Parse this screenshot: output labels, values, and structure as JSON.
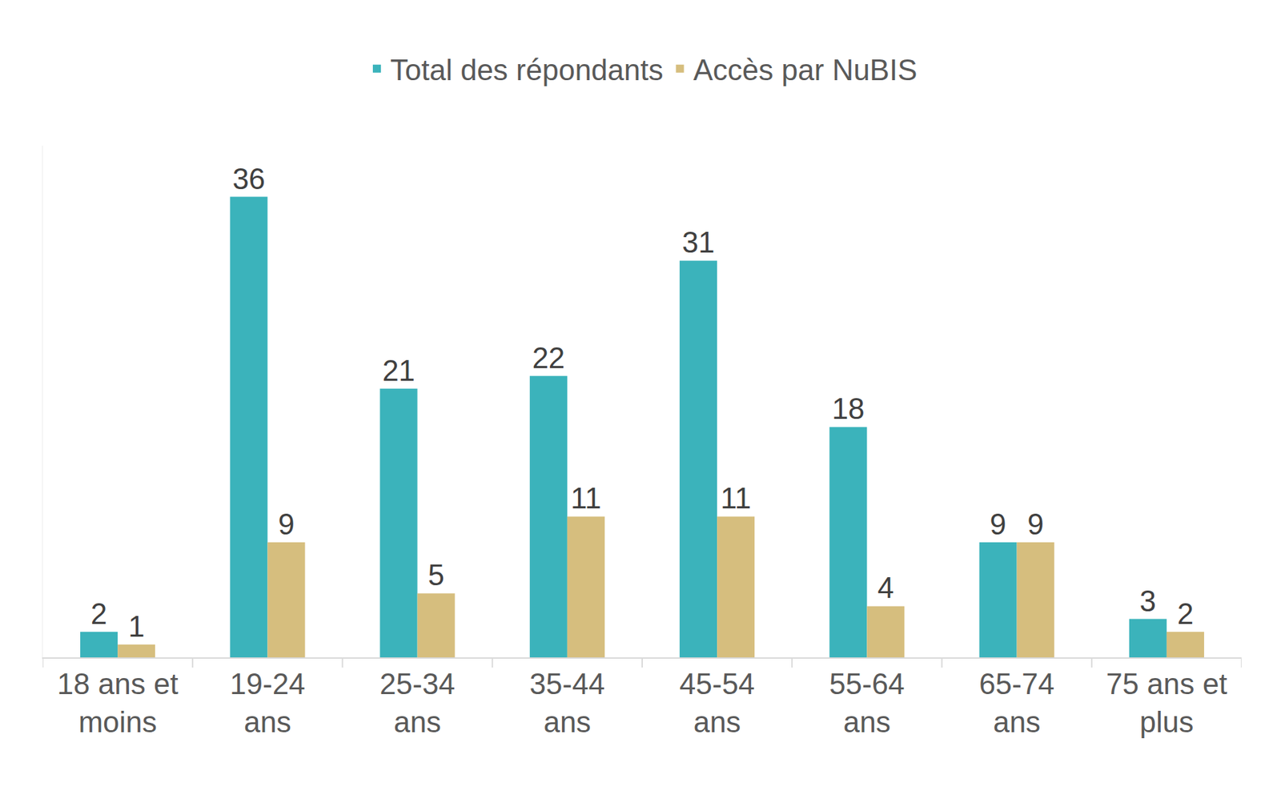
{
  "chart_data": {
    "type": "bar",
    "categories": [
      "18 ans et moins",
      "19-24 ans",
      "25-34 ans",
      "35-44 ans",
      "45-54 ans",
      "55-64 ans",
      "65-74 ans",
      "75 ans et plus"
    ],
    "series": [
      {
        "name": "Total des répondants",
        "color": "#3bb3bb",
        "values": [
          2,
          36,
          21,
          22,
          31,
          18,
          9,
          3
        ]
      },
      {
        "name": "Accès par NuBIS",
        "color": "#d6be7e",
        "values": [
          1,
          9,
          5,
          11,
          11,
          4,
          9,
          2
        ]
      }
    ],
    "ylim": [
      0,
      40
    ],
    "yticks": [],
    "grid": false,
    "legend": "top",
    "data_labels": true,
    "tick_labels": "x"
  }
}
